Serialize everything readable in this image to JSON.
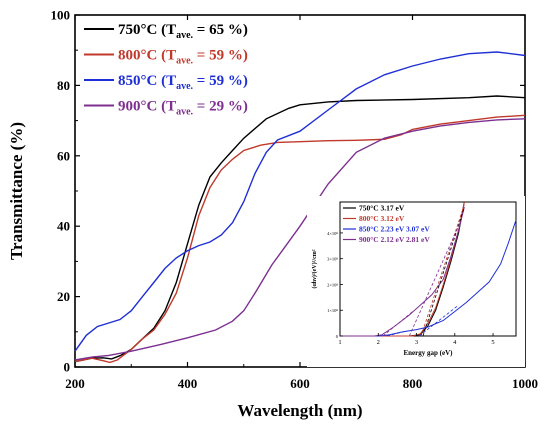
{
  "chart_data": {
    "type": "line",
    "xlabel": "Wavelength (nm)",
    "ylabel": "Transmittance (%)",
    "xlim": [
      200,
      1000
    ],
    "ylim": [
      0,
      100
    ],
    "xticks": [
      200,
      400,
      600,
      800,
      1000
    ],
    "yticks": [
      0,
      20,
      40,
      60,
      80,
      100
    ],
    "xtick_labels": [
      "200",
      "400",
      "600",
      "800",
      "1000"
    ],
    "ytick_labels": [
      "0",
      "20",
      "40",
      "60",
      "80",
      "100"
    ],
    "legend_position": "top-left",
    "series": [
      {
        "name_prefix": "750°C (T",
        "name_sub": "ave.",
        "name_suffix": "= 65 %)",
        "color": "#000000",
        "points": [
          [
            200,
            1.5
          ],
          [
            230,
            2.5
          ],
          [
            250,
            2.6
          ],
          [
            265,
            2.3
          ],
          [
            280,
            3.2
          ],
          [
            300,
            5
          ],
          [
            320,
            8
          ],
          [
            340,
            11
          ],
          [
            360,
            16
          ],
          [
            380,
            24
          ],
          [
            400,
            35
          ],
          [
            420,
            46
          ],
          [
            440,
            54
          ],
          [
            460,
            58
          ],
          [
            480,
            61.5
          ],
          [
            500,
            65
          ],
          [
            540,
            70.5
          ],
          [
            580,
            73.5
          ],
          [
            600,
            74.5
          ],
          [
            650,
            75.3
          ],
          [
            700,
            75.7
          ],
          [
            800,
            76
          ],
          [
            900,
            76.5
          ],
          [
            950,
            77
          ],
          [
            1000,
            76.5
          ]
        ]
      },
      {
        "name_prefix": "800°C (T",
        "name_sub": "ave.",
        "name_suffix": "= 59 %)",
        "color": "#c0392b",
        "points": [
          [
            200,
            1.5
          ],
          [
            230,
            2.5
          ],
          [
            250,
            1.8
          ],
          [
            262,
            1.3
          ],
          [
            275,
            2
          ],
          [
            300,
            5
          ],
          [
            320,
            8
          ],
          [
            340,
            10.5
          ],
          [
            360,
            15
          ],
          [
            380,
            21
          ],
          [
            400,
            31
          ],
          [
            420,
            43
          ],
          [
            440,
            51
          ],
          [
            460,
            56
          ],
          [
            480,
            59
          ],
          [
            500,
            61.5
          ],
          [
            530,
            63
          ],
          [
            560,
            63.8
          ],
          [
            600,
            64
          ],
          [
            650,
            64.3
          ],
          [
            700,
            64.4
          ],
          [
            750,
            64.7
          ],
          [
            780,
            66
          ],
          [
            800,
            67.5
          ],
          [
            850,
            69
          ],
          [
            900,
            70
          ],
          [
            950,
            71
          ],
          [
            1000,
            71.5
          ]
        ]
      },
      {
        "name_prefix": "850°C (T",
        "name_sub": "ave.",
        "name_suffix": "= 59 %)",
        "color": "#1f2fd6",
        "points": [
          [
            200,
            4.5
          ],
          [
            220,
            9
          ],
          [
            240,
            11.5
          ],
          [
            260,
            12.5
          ],
          [
            280,
            13.5
          ],
          [
            300,
            16
          ],
          [
            320,
            20
          ],
          [
            340,
            24
          ],
          [
            360,
            28
          ],
          [
            380,
            31
          ],
          [
            400,
            33
          ],
          [
            420,
            34.5
          ],
          [
            440,
            35.5
          ],
          [
            460,
            37.5
          ],
          [
            480,
            41
          ],
          [
            500,
            47
          ],
          [
            520,
            55
          ],
          [
            540,
            61
          ],
          [
            560,
            64.5
          ],
          [
            600,
            67
          ],
          [
            650,
            73
          ],
          [
            700,
            79
          ],
          [
            750,
            83
          ],
          [
            800,
            85.5
          ],
          [
            850,
            87.5
          ],
          [
            900,
            89
          ],
          [
            950,
            89.5
          ],
          [
            975,
            89
          ],
          [
            1000,
            88.5
          ]
        ]
      },
      {
        "name_prefix": "900°C (T",
        "name_sub": "ave.",
        "name_suffix": "= 29 %)",
        "color": "#7d2f8f",
        "points": [
          [
            200,
            2
          ],
          [
            230,
            2.8
          ],
          [
            260,
            3.3
          ],
          [
            300,
            4.5
          ],
          [
            350,
            6.3
          ],
          [
            400,
            8.3
          ],
          [
            450,
            10.5
          ],
          [
            480,
            13
          ],
          [
            500,
            16
          ],
          [
            520,
            21
          ],
          [
            550,
            29
          ],
          [
            600,
            40
          ],
          [
            650,
            52
          ],
          [
            700,
            61
          ],
          [
            750,
            65
          ],
          [
            800,
            67
          ],
          [
            850,
            68.5
          ],
          [
            900,
            69.5
          ],
          [
            950,
            70.2
          ],
          [
            1000,
            70.5
          ]
        ]
      }
    ],
    "inset": {
      "xlabel": "Energy gap (eV)",
      "ylabel": "(αhν)²(eV)²/cm²",
      "xlim": [
        1,
        5.6
      ],
      "ylim": [
        0,
        5.2
      ],
      "xticks": [
        1,
        2,
        3,
        4,
        5
      ],
      "yticks": [
        0,
        1,
        2,
        3,
        4
      ],
      "xtick_labels": [
        "1",
        "2",
        "3",
        "4",
        "5"
      ],
      "ytick_labels": [
        "0",
        "1×10⁸",
        "2×10⁸",
        "3×10⁸",
        "4×10⁸"
      ],
      "legend": [
        {
          "label": "750°C 3.17 eV",
          "color": "#000000"
        },
        {
          "label": "800°C 3.12 eV",
          "color": "#c0392b"
        },
        {
          "label": "850°C 2.23 eV 3.07 eV",
          "color": "#1f2fd6"
        },
        {
          "label": "900°C 2.12 eV 2.81 eV",
          "color": "#7d2f8f"
        }
      ],
      "series": [
        {
          "color": "#000000",
          "points": [
            [
              1.0,
              0
            ],
            [
              2.8,
              0
            ],
            [
              3.1,
              0.05
            ],
            [
              3.3,
              0.4
            ],
            [
              3.5,
              1.0
            ],
            [
              3.7,
              1.9
            ],
            [
              3.9,
              2.9
            ],
            [
              4.1,
              4.0
            ],
            [
              4.25,
              5.2
            ]
          ]
        },
        {
          "color": "#c0392b",
          "points": [
            [
              1.0,
              0
            ],
            [
              2.9,
              0
            ],
            [
              3.1,
              0.08
            ],
            [
              3.3,
              0.5
            ],
            [
              3.5,
              1.1
            ],
            [
              3.7,
              2.0
            ],
            [
              3.9,
              3.0
            ],
            [
              4.1,
              4.1
            ],
            [
              4.25,
              5.2
            ]
          ]
        },
        {
          "color": "#1f2fd6",
          "points": [
            [
              1.0,
              0
            ],
            [
              2.0,
              0
            ],
            [
              2.3,
              0.05
            ],
            [
              2.6,
              0.15
            ],
            [
              3.0,
              0.25
            ],
            [
              3.3,
              0.35
            ],
            [
              3.7,
              0.6
            ],
            [
              4.0,
              0.95
            ],
            [
              4.3,
              1.3
            ],
            [
              4.6,
              1.7
            ],
            [
              4.9,
              2.1
            ],
            [
              5.2,
              2.8
            ],
            [
              5.4,
              3.6
            ],
            [
              5.6,
              4.5
            ]
          ]
        },
        {
          "color": "#7d2f8f",
          "points": [
            [
              1.0,
              0
            ],
            [
              1.9,
              0
            ],
            [
              2.1,
              0.05
            ],
            [
              2.4,
              0.35
            ],
            [
              2.8,
              0.8
            ],
            [
              3.1,
              1.2
            ],
            [
              3.4,
              1.6
            ],
            [
              3.7,
              2.2
            ],
            [
              3.9,
              3.1
            ],
            [
              4.1,
              4.1
            ],
            [
              4.25,
              5.0
            ]
          ]
        }
      ],
      "fits": [
        {
          "color": "#000000",
          "points": [
            [
              3.17,
              0
            ],
            [
              4.25,
              5.0
            ]
          ]
        },
        {
          "color": "#c0392b",
          "points": [
            [
              3.12,
              0
            ],
            [
              4.25,
              5.1
            ]
          ]
        },
        {
          "color": "#1f2fd6",
          "points": [
            [
              2.23,
              0
            ],
            [
              2.75,
              0.2
            ]
          ]
        },
        {
          "color": "#1f2fd6",
          "points": [
            [
              3.07,
              0
            ],
            [
              4.1,
              1.2
            ]
          ]
        },
        {
          "color": "#7d2f8f",
          "points": [
            [
              2.12,
              0
            ],
            [
              2.9,
              0.95
            ]
          ]
        },
        {
          "color": "#7d2f8f",
          "points": [
            [
              2.81,
              0
            ],
            [
              4.2,
              4.6
            ]
          ]
        }
      ]
    }
  }
}
